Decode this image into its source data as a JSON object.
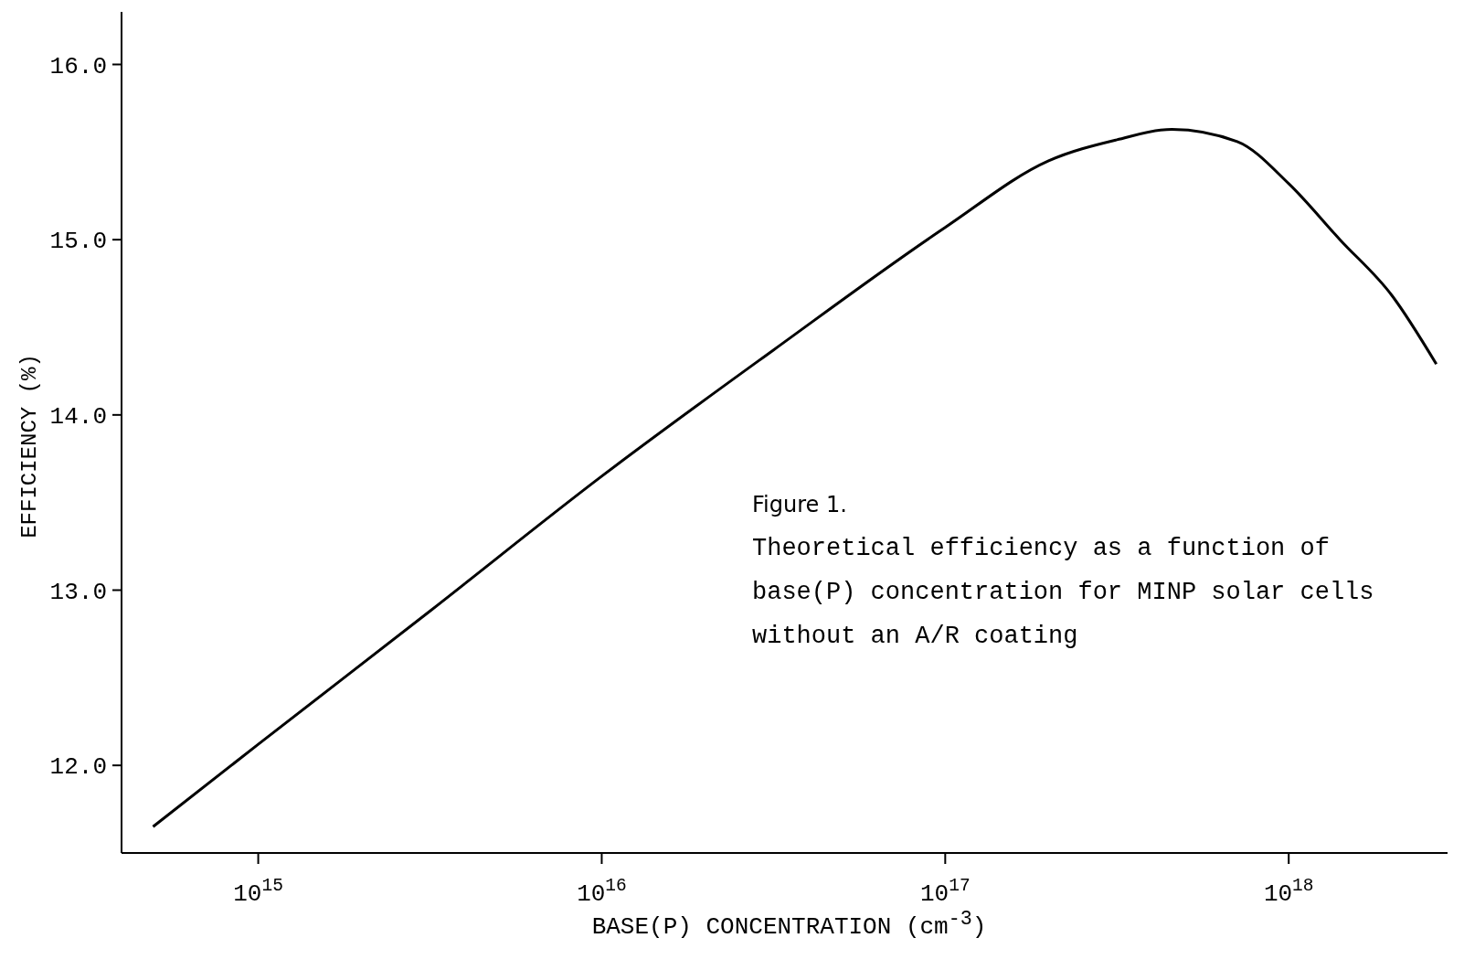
{
  "chart_data": {
    "type": "line",
    "xlabel": "BASE(P) CONCENTRATION (cm$^{-3}$)",
    "ylabel": "EFFICIENCY (%)",
    "annotations": [
      "Figure 1.",
      "Theoretical efficiency as a function of base(P) concentration for MINP solar cells without an A/R coating"
    ],
    "log": "x",
    "xlim": [
      400000000000000.0,
      2.9e+18
    ],
    "ylim": [
      11.5,
      16.3
    ],
    "xticks": [
      {
        "value": 1000000000000000.0,
        "label": "10$^{15}$"
      },
      {
        "value": 1e+16,
        "label": "10$^{16}$"
      },
      {
        "value": 1e+17,
        "label": "10$^{17}$"
      },
      {
        "value": 1e+18,
        "label": "10$^{18}$"
      }
    ],
    "yticks": [
      {
        "value": 12,
        "label": "12.0"
      },
      {
        "value": 13,
        "label": "13.0"
      },
      {
        "value": 14,
        "label": "14.0"
      },
      {
        "value": 15,
        "label": "15.0"
      },
      {
        "value": 16,
        "label": "16.0"
      }
    ],
    "grid": false,
    "legend": false,
    "marker": "none",
    "line_style": "solid",
    "series": [
      {
        "color": "#000000",
        "x": [
          494000000000000.0,
          1000000000000000.0,
          3160000000000000.0,
          1e+16,
          3.16e+16,
          1e+17,
          2e+17,
          3.16e+17,
          4.57e+17,
          7.08e+17,
          1e+18,
          1.41e+18,
          2e+18,
          2.69e+18
        ],
        "values": [
          11.65,
          12.12,
          12.88,
          13.65,
          14.37,
          15.07,
          15.45,
          15.57,
          15.63,
          15.56,
          15.32,
          15.0,
          14.68,
          14.29
        ]
      }
    ]
  }
}
